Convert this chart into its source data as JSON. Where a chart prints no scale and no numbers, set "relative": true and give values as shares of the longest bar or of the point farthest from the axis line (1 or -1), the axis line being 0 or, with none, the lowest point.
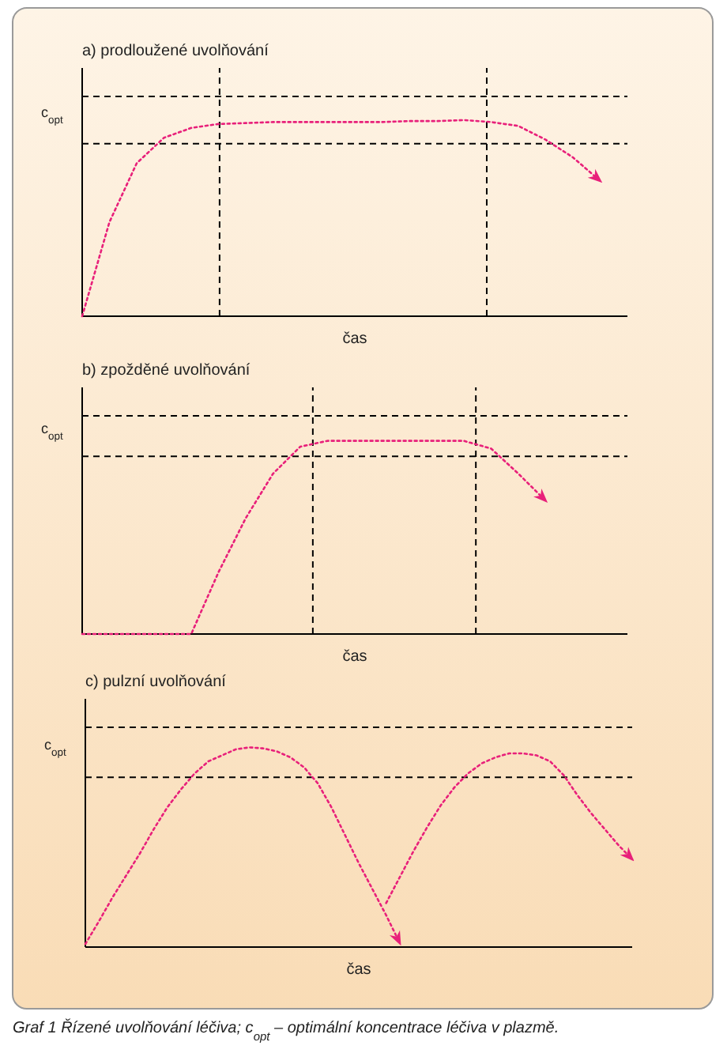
{
  "chart_data": [
    {
      "type": "line",
      "title": "a) prodloužené uvolňování",
      "xlabel": "čas",
      "ylabel": "c$_{opt}$",
      "relative": true,
      "line_style": "dotted",
      "marker": "none",
      "categories": [
        null,
        null,
        null,
        null,
        null,
        null,
        null,
        null,
        null,
        null,
        null,
        null,
        null,
        null,
        null,
        null,
        null,
        null,
        null,
        null,
        null
      ],
      "series": [
        {
          "color": "#e8207a",
          "values": [
            0,
            0.48,
            0.78,
            0.91,
            0.96,
            0.98,
            0.985,
            0.99,
            0.99,
            0.99,
            0.99,
            0.99,
            0.995,
            0.995,
            1,
            0.99,
            0.97,
            0.9,
            0.81,
            0.69,
            null
          ]
        }
      ],
      "ref_lines": [
        {
          "axis": "y",
          "value": 1.12,
          "color": "#000000",
          "line_style": "dashed"
        },
        {
          "axis": "y",
          "value": 0.88,
          "color": "#000000",
          "line_style": "dashed"
        }
      ]
    },
    {
      "type": "line",
      "title": "b) zpožděné uvolňování",
      "xlabel": "čas",
      "ylabel": "c$_{opt}$",
      "relative": true,
      "line_style": "dotted",
      "marker": "none",
      "categories": [
        null,
        null,
        null,
        null,
        null,
        null,
        null,
        null,
        null,
        null,
        null,
        null,
        null,
        null,
        null,
        null,
        null,
        null,
        null,
        null,
        null
      ],
      "series": [
        {
          "color": "#e8207a",
          "values": [
            0,
            0,
            0,
            0,
            0,
            0.32,
            0.6,
            0.83,
            0.97,
            1,
            1,
            1,
            1,
            1,
            1,
            0.96,
            0.83,
            0.69,
            null,
            null,
            null
          ]
        }
      ],
      "ref_lines": [
        {
          "axis": "y",
          "value": 1.13,
          "color": "#000000",
          "line_style": "dashed"
        },
        {
          "axis": "y",
          "value": 0.92,
          "color": "#000000",
          "line_style": "dashed"
        }
      ]
    },
    {
      "type": "line",
      "title": "c) pulzní uvolňování",
      "xlabel": "čas",
      "ylabel": "c$_{opt}$",
      "relative": true,
      "line_style": "dotted",
      "marker": "none",
      "categories": [
        null,
        null,
        null,
        null,
        null,
        null,
        null,
        null,
        null,
        null,
        null,
        null,
        null,
        null,
        null,
        null,
        null,
        null,
        null,
        null,
        null,
        null,
        null,
        null,
        null,
        null,
        null,
        null,
        null,
        null,
        null,
        null,
        null,
        null,
        null,
        null,
        null,
        null,
        null,
        null,
        null
      ],
      "series": [
        {
          "color": "#e8207a",
          "values": [
            0.015,
            0.13,
            0.25,
            0.36,
            0.47,
            0.59,
            0.7,
            0.79,
            0.87,
            0.93,
            0.96,
            0.99,
            1,
            0.995,
            0.98,
            0.95,
            0.9,
            0.82,
            0.7,
            0.56,
            0.42,
            0.29,
            0.16,
            0.02,
            null,
            null,
            null,
            null,
            null,
            null,
            null,
            null,
            null,
            null,
            null,
            null,
            null,
            null,
            null,
            null,
            null
          ]
        },
        {
          "color": "#e8207a",
          "values": [
            null,
            null,
            null,
            null,
            null,
            null,
            null,
            null,
            null,
            null,
            null,
            null,
            null,
            null,
            null,
            null,
            null,
            null,
            null,
            null,
            null,
            null,
            0.22,
            0.35,
            0.48,
            0.6,
            0.71,
            0.8,
            0.87,
            0.92,
            0.95,
            0.97,
            0.97,
            0.96,
            0.93,
            0.86,
            0.76,
            0.67,
            0.59,
            0.51,
            0.44
          ]
        }
      ],
      "ref_lines": [
        {
          "axis": "y",
          "value": 1.1,
          "color": "#000000",
          "line_style": "dashed"
        },
        {
          "axis": "y",
          "value": 0.85,
          "color": "#000000",
          "line_style": "dashed"
        }
      ],
      "annotations": [
        "Graf 1  Řízené uvolňování léčiva; c$_{opt}$ – optimální koncentrace léčiva v plazmě."
      ]
    }
  ]
}
